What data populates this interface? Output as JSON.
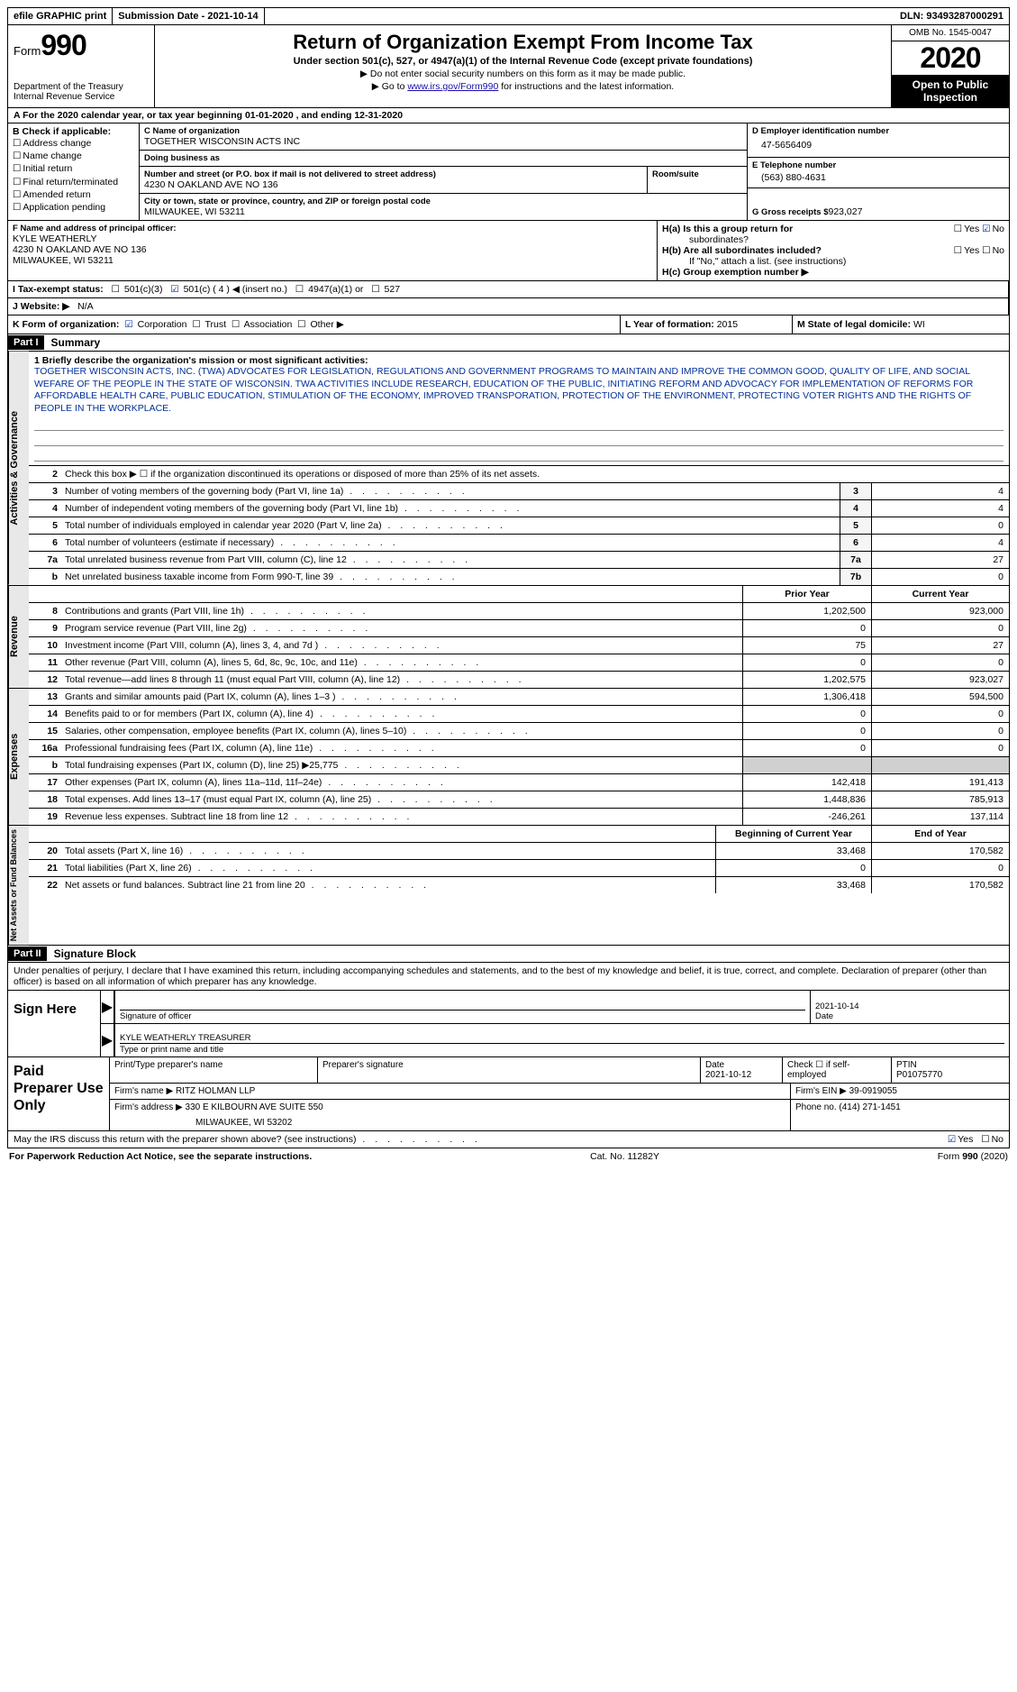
{
  "topbar": {
    "efile": "efile GRAPHIC print",
    "sub_label": "Submission Date - ",
    "sub_date": "2021-10-14",
    "dln_label": "DLN: ",
    "dln": "93493287000291"
  },
  "header": {
    "form_word": "Form",
    "form_num": "990",
    "dept": "Department of the Treasury",
    "irs": "Internal Revenue Service",
    "title": "Return of Organization Exempt From Income Tax",
    "subtitle": "Under section 501(c), 527, or 4947(a)(1) of the Internal Revenue Code (except private foundations)",
    "line1": "▶ Do not enter social security numbers on this form as it may be made public.",
    "line2_pre": "▶ Go to ",
    "line2_link": "www.irs.gov/Form990",
    "line2_post": " for instructions and the latest information.",
    "omb": "OMB No. 1545-0047",
    "year": "2020",
    "open": "Open to Public Inspection"
  },
  "row_a": "A   For the 2020 calendar year, or tax year beginning 01-01-2020     , and ending 12-31-2020",
  "box_b": {
    "title": "B Check if applicable:",
    "opts": [
      "Address change",
      "Name change",
      "Initial return",
      "Final return/terminated",
      "Amended return",
      "Application pending"
    ]
  },
  "box_c": {
    "name_lbl": "C Name of organization",
    "name": "TOGETHER WISCONSIN ACTS INC",
    "dba_lbl": "Doing business as",
    "dba": "",
    "street_lbl": "Number and street (or P.O. box if mail is not delivered to street address)",
    "street": "4230 N OAKLAND AVE NO 136",
    "room_lbl": "Room/suite",
    "city_lbl": "City or town, state or province, country, and ZIP or foreign postal code",
    "city": "MILWAUKEE, WI  53211"
  },
  "box_d": {
    "ein_lbl": "D Employer identification number",
    "ein": "47-5656409",
    "tel_lbl": "E Telephone number",
    "tel": "(563) 880-4631",
    "gross_lbl": "G Gross receipts $ ",
    "gross": "923,027"
  },
  "box_f": {
    "lbl": "F  Name and address of principal officer:",
    "name": "KYLE WEATHERLY",
    "addr1": "4230 N OAKLAND AVE NO 136",
    "addr2": "MILWAUKEE, WI  53211"
  },
  "box_h": {
    "ha": "H(a)  Is this a group return for",
    "ha2": "subordinates?",
    "hb": "H(b)  Are all subordinates included?",
    "hb2": "If \"No,\" attach a list. (see instructions)",
    "hc": "H(c)  Group exemption number ▶",
    "yes": "Yes",
    "no": "No"
  },
  "row_i": {
    "lbl": "I    Tax-exempt status:",
    "o1": "501(c)(3)",
    "o2": "501(c) ( 4 ) ◀ (insert no.)",
    "o3": "4947(a)(1) or",
    "o4": "527"
  },
  "row_j": {
    "lbl": "J   Website: ▶",
    "val": "N/A"
  },
  "row_k": {
    "lbl": "K Form of organization:",
    "o1": "Corporation",
    "o2": "Trust",
    "o3": "Association",
    "o4": "Other ▶"
  },
  "row_l": {
    "lbl": "L Year of formation: ",
    "val": "2015"
  },
  "row_m": {
    "lbl": "M State of legal domicile: ",
    "val": "WI"
  },
  "parts": {
    "p1": "Part I",
    "p1_title": "Summary",
    "p2": "Part II",
    "p2_title": "Signature Block"
  },
  "vlabels": {
    "ag": "Activities & Governance",
    "rev": "Revenue",
    "exp": "Expenses",
    "net": "Net Assets or Fund Balances"
  },
  "mission": {
    "lbl": "1   Briefly describe the organization's mission or most significant activities:",
    "text": "TOGETHER WISCONSIN ACTS, INC. (TWA) ADVOCATES FOR LEGISLATION, REGULATIONS AND GOVERNMENT PROGRAMS TO MAINTAIN AND IMPROVE THE COMMON GOOD, QUALITY OF LIFE, AND SOCIAL WEFARE OF THE PEOPLE IN THE STATE OF WISCONSIN. TWA ACTIVITIES INCLUDE RESEARCH, EDUCATION OF THE PUBLIC, INITIATING REFORM AND ADVOCACY FOR IMPLEMENTATION OF REFORMS FOR AFFORDABLE HEALTH CARE, PUBLIC EDUCATION, STIMULATION OF THE ECONOMY, IMPROVED TRANSPORATION, PROTECTION OF THE ENVIRONMENT, PROTECTING VOTER RIGHTS AND THE RIGHTS OF PEOPLE IN THE WORKPLACE."
  },
  "gov_lines": [
    {
      "n": "2",
      "desc": "Check this box ▶ ☐  if the organization discontinued its operations or disposed of more than 25% of its net assets.",
      "box": "",
      "val": ""
    },
    {
      "n": "3",
      "desc": "Number of voting members of the governing body (Part VI, line 1a)",
      "box": "3",
      "val": "4"
    },
    {
      "n": "4",
      "desc": "Number of independent voting members of the governing body (Part VI, line 1b)",
      "box": "4",
      "val": "4"
    },
    {
      "n": "5",
      "desc": "Total number of individuals employed in calendar year 2020 (Part V, line 2a)",
      "box": "5",
      "val": "0"
    },
    {
      "n": "6",
      "desc": "Total number of volunteers (estimate if necessary)",
      "box": "6",
      "val": "4"
    },
    {
      "n": "7a",
      "desc": "Total unrelated business revenue from Part VIII, column (C), line 12",
      "box": "7a",
      "val": "27"
    },
    {
      "n": "b",
      "desc": "Net unrelated business taxable income from Form 990-T, line 39",
      "box": "7b",
      "val": "0"
    }
  ],
  "fin_hdr": {
    "prior": "Prior Year",
    "curr": "Current Year"
  },
  "rev_lines": [
    {
      "n": "8",
      "desc": "Contributions and grants (Part VIII, line 1h)",
      "p": "1,202,500",
      "c": "923,000"
    },
    {
      "n": "9",
      "desc": "Program service revenue (Part VIII, line 2g)",
      "p": "0",
      "c": "0"
    },
    {
      "n": "10",
      "desc": "Investment income (Part VIII, column (A), lines 3, 4, and 7d )",
      "p": "75",
      "c": "27"
    },
    {
      "n": "11",
      "desc": "Other revenue (Part VIII, column (A), lines 5, 6d, 8c, 9c, 10c, and 11e)",
      "p": "0",
      "c": "0"
    },
    {
      "n": "12",
      "desc": "Total revenue—add lines 8 through 11 (must equal Part VIII, column (A), line 12)",
      "p": "1,202,575",
      "c": "923,027"
    }
  ],
  "exp_lines": [
    {
      "n": "13",
      "desc": "Grants and similar amounts paid (Part IX, column (A), lines 1–3 )",
      "p": "1,306,418",
      "c": "594,500"
    },
    {
      "n": "14",
      "desc": "Benefits paid to or for members (Part IX, column (A), line 4)",
      "p": "0",
      "c": "0"
    },
    {
      "n": "15",
      "desc": "Salaries, other compensation, employee benefits (Part IX, column (A), lines 5–10)",
      "p": "0",
      "c": "0"
    },
    {
      "n": "16a",
      "desc": "Professional fundraising fees (Part IX, column (A), line 11e)",
      "p": "0",
      "c": "0"
    },
    {
      "n": "b",
      "desc": "Total fundraising expenses (Part IX, column (D), line 25)  ▶25,775",
      "p": "",
      "c": "",
      "shade": true
    },
    {
      "n": "17",
      "desc": "Other expenses (Part IX, column (A), lines 11a–11d, 11f–24e)",
      "p": "142,418",
      "c": "191,413"
    },
    {
      "n": "18",
      "desc": "Total expenses. Add lines 13–17 (must equal Part IX, column (A), line 25)",
      "p": "1,448,836",
      "c": "785,913"
    },
    {
      "n": "19",
      "desc": "Revenue less expenses. Subtract line 18 from line 12",
      "p": "-246,261",
      "c": "137,114"
    }
  ],
  "net_hdr": {
    "beg": "Beginning of Current Year",
    "end": "End of Year"
  },
  "net_lines": [
    {
      "n": "20",
      "desc": "Total assets (Part X, line 16)",
      "p": "33,468",
      "c": "170,582"
    },
    {
      "n": "21",
      "desc": "Total liabilities (Part X, line 26)",
      "p": "0",
      "c": "0"
    },
    {
      "n": "22",
      "desc": "Net assets or fund balances. Subtract line 21 from line 20",
      "p": "33,468",
      "c": "170,582"
    }
  ],
  "sig_decl": "Under penalties of perjury, I declare that I have examined this return, including accompanying schedules and statements, and to the best of my knowledge and belief, it is true, correct, and complete. Declaration of preparer (other than officer) is based on all information of which preparer has any knowledge.",
  "sign": {
    "here": "Sign Here",
    "sig_lbl": "Signature of officer",
    "date_val": "2021-10-14",
    "date_lbl": "Date",
    "name_val": "KYLE WEATHERLY  TREASURER",
    "name_lbl": "Type or print name and title"
  },
  "prep": {
    "title": "Paid Preparer Use Only",
    "pname_lbl": "Print/Type preparer's name",
    "psig_lbl": "Preparer's signature",
    "pdate_lbl": "Date",
    "pdate": "2021-10-12",
    "pcheck_lbl": "Check ☐ if self-employed",
    "ptin_lbl": "PTIN",
    "ptin": "P01075770",
    "firm_name_lbl": "Firm's name      ▶ ",
    "firm_name": "RITZ HOLMAN LLP",
    "firm_ein_lbl": "Firm's EIN ▶ ",
    "firm_ein": "39-0919055",
    "firm_addr_lbl": "Firm's address ▶ ",
    "firm_addr": "330 E KILBOURN AVE SUITE 550",
    "firm_city": "MILWAUKEE, WI  53202",
    "phone_lbl": "Phone no. ",
    "phone": "(414) 271-1451"
  },
  "discuss": {
    "q": "May the IRS discuss this return with the preparer shown above? (see instructions)",
    "yes": "Yes",
    "no": "No"
  },
  "footer": {
    "left": "For Paperwork Reduction Act Notice, see the separate instructions.",
    "mid": "Cat. No. 11282Y",
    "right": "Form 990 (2020)"
  }
}
